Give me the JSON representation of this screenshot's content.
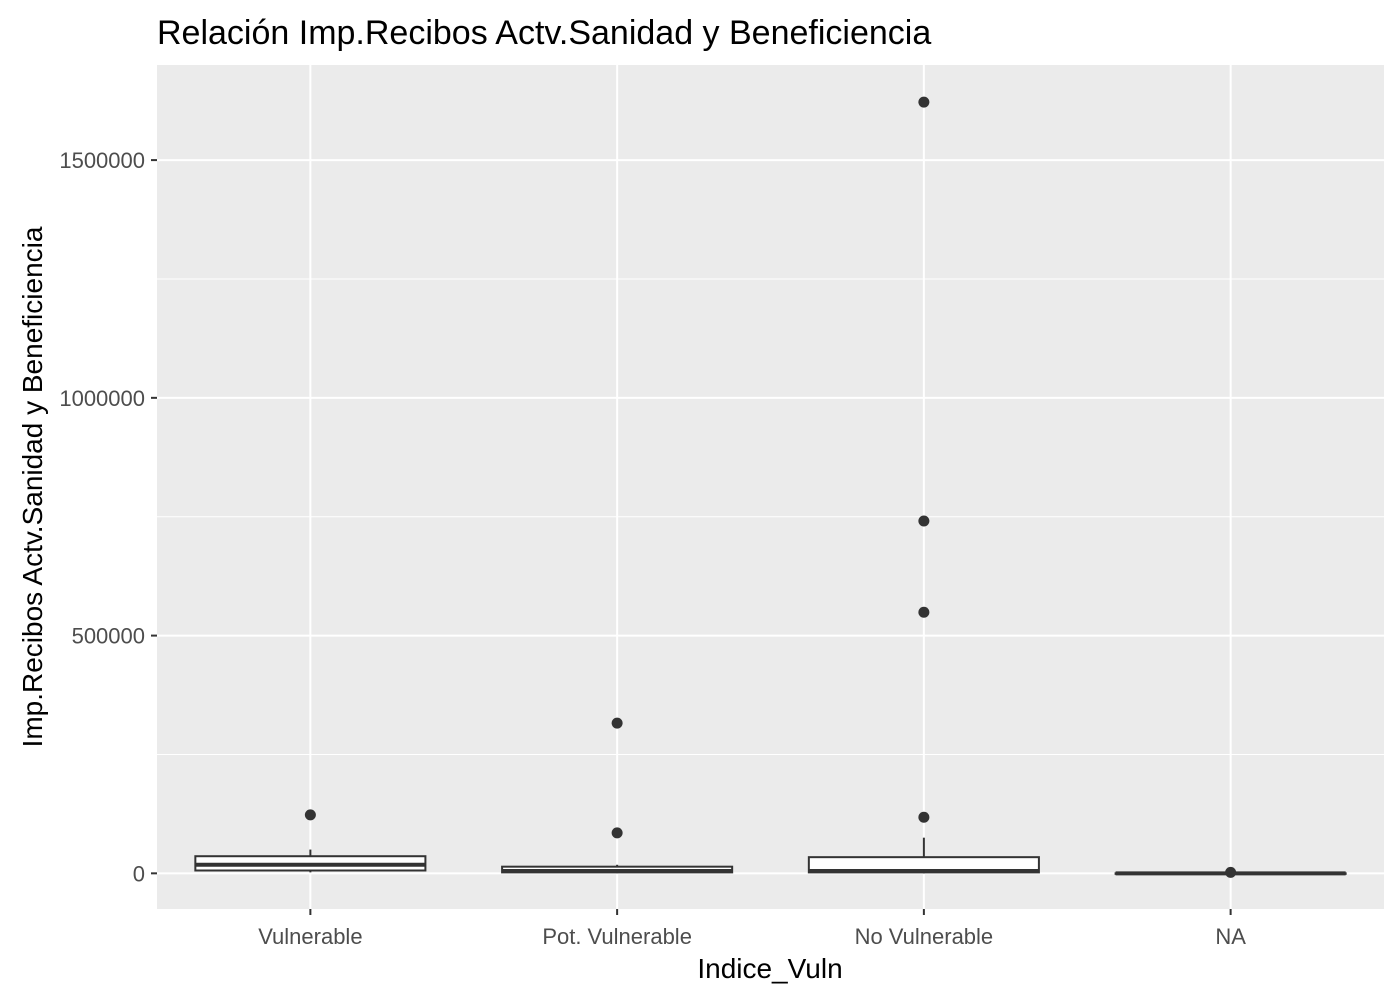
{
  "chart_data": {
    "type": "boxplot",
    "title": "Relación  Imp.Recibos Actv.Sanidad y Beneficiencia",
    "xlabel": "Indice_Vuln",
    "ylabel": "Imp.Recibos Actv.Sanidad y Beneficiencia",
    "categories": [
      "Vulnerable",
      "Pot. Vulnerable",
      "No Vulnerable",
      "NA"
    ],
    "y_ticks": [
      0,
      500000,
      1000000,
      1500000
    ],
    "y_tick_labels": [
      "0",
      "500000",
      "1000000",
      "1500000"
    ],
    "ylim": [
      -75000,
      1700000
    ],
    "grid": true,
    "colors": {
      "panel": "#ebebeb",
      "grid": "#ffffff",
      "box_fill": "#ffffff",
      "box_stroke": "#333333",
      "outlier": "#333333",
      "tick_label": "#4d4d4d"
    },
    "boxes": [
      {
        "category": "Vulnerable",
        "whisker_low": 2000,
        "q1": 6000,
        "median": 18000,
        "q3": 36000,
        "whisker_high": 50000,
        "outliers": [
          123000
        ]
      },
      {
        "category": "Pot. Vulnerable",
        "whisker_low": 500,
        "q1": 2000,
        "median": 5000,
        "q3": 14000,
        "whisker_high": 18000,
        "outliers": [
          85000,
          316000
        ]
      },
      {
        "category": "No Vulnerable",
        "whisker_low": 0,
        "q1": 2000,
        "median": 5000,
        "q3": 34000,
        "whisker_high": 75000,
        "outliers": [
          118000,
          549000,
          741000,
          1622000
        ]
      },
      {
        "category": "NA",
        "whisker_low": 0,
        "q1": 0,
        "median": 0,
        "q3": 0,
        "whisker_high": 0,
        "outliers": [
          2000
        ]
      }
    ]
  }
}
